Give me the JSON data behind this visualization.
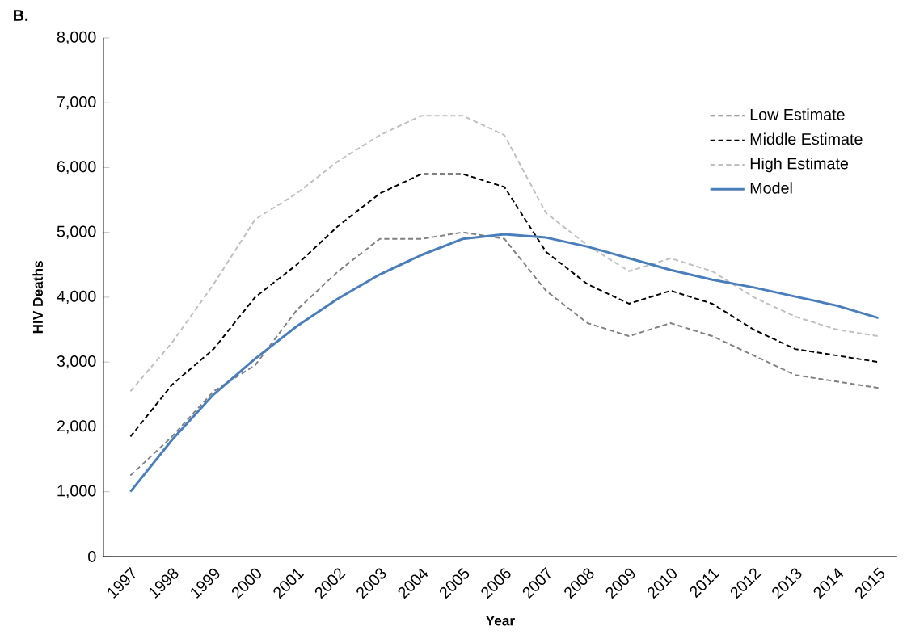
{
  "chart_data": {
    "type": "line",
    "title": "B.",
    "xlabel": "Year",
    "ylabel": "HIV Deaths",
    "categories": [
      "1997",
      "1998",
      "1999",
      "2000",
      "2001",
      "2002",
      "2003",
      "2004",
      "2005",
      "2006",
      "2007",
      "2008",
      "2009",
      "2010",
      "2011",
      "2012",
      "2013",
      "2014",
      "2015"
    ],
    "series": [
      {
        "name": "Low Estimate",
        "color": "#808080",
        "line_style": "dashed",
        "values": [
          1250,
          1850,
          2550,
          2950,
          3800,
          4400,
          4900,
          4900,
          5000,
          4900,
          4100,
          3600,
          3400,
          3600,
          3400,
          3100,
          2800,
          2700,
          2600
        ]
      },
      {
        "name": "Middle Estimate",
        "color": "#000000",
        "line_style": "dashed",
        "values": [
          1850,
          2650,
          3200,
          4000,
          4500,
          5100,
          5600,
          5900,
          5900,
          5700,
          4700,
          4200,
          3900,
          4100,
          3900,
          3500,
          3200,
          3100,
          3000
        ]
      },
      {
        "name": "High Estimate",
        "color": "#bfbfbf",
        "line_style": "dashed",
        "values": [
          2550,
          3300,
          4200,
          5200,
          5600,
          6100,
          6500,
          6800,
          6800,
          6500,
          5300,
          4800,
          4400,
          4600,
          4400,
          4000,
          3700,
          3500,
          3400
        ]
      },
      {
        "name": "Model",
        "color": "#4a7ebb",
        "line_style": "solid",
        "values": [
          1000,
          1800,
          2500,
          3050,
          3550,
          3980,
          4350,
          4650,
          4900,
          4970,
          4920,
          4780,
          4600,
          4420,
          4270,
          4150,
          4010,
          3870,
          3680
        ]
      }
    ],
    "ylim": [
      0,
      8000
    ],
    "yticks": [
      {
        "value": 0,
        "label": "0"
      },
      {
        "value": 1000,
        "label": "1,000"
      },
      {
        "value": 2000,
        "label": "2,000"
      },
      {
        "value": 3000,
        "label": "3,000"
      },
      {
        "value": 4000,
        "label": "4,000"
      },
      {
        "value": 5000,
        "label": "5,000"
      },
      {
        "value": 6000,
        "label": "6,000"
      },
      {
        "value": 7000,
        "label": "7,000"
      },
      {
        "value": 8000,
        "label": "8,000"
      }
    ],
    "grid": false,
    "legend": "top right",
    "marker": "none"
  }
}
